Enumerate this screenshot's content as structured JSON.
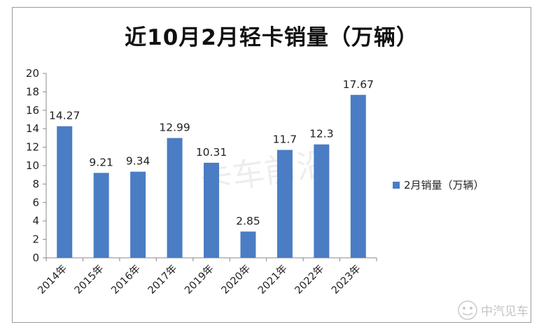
{
  "chart_data": {
    "type": "bar",
    "title": "近10月2月轻卡销量（万辆）",
    "categories": [
      "2014年",
      "2015年",
      "2016年",
      "2017年",
      "2019年",
      "2020年",
      "2021年",
      "2022年",
      "2023年"
    ],
    "series": [
      {
        "name": "2月销量（万辆）",
        "values": [
          14.27,
          9.21,
          9.34,
          12.99,
          10.31,
          2.85,
          11.7,
          12.3,
          17.67
        ],
        "labels": [
          "14.27",
          "9.21",
          "9.34",
          "12.99",
          "10.31",
          "2.85",
          "11.7",
          "12.3",
          "17.67"
        ]
      }
    ],
    "ylim": [
      0,
      20
    ],
    "yticks": [
      0,
      2,
      4,
      6,
      8,
      10,
      12,
      14,
      16,
      18,
      20
    ],
    "grid": false,
    "legend_position": "right",
    "bar_color": "#4a7dc4"
  },
  "watermarks": {
    "center": "卡车前沿",
    "corner": "中汽见车"
  }
}
